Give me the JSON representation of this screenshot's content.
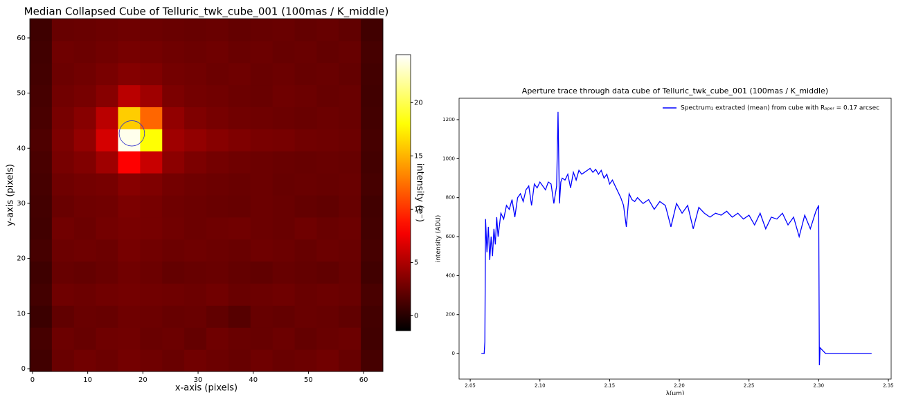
{
  "chart_data": [
    {
      "type": "heatmap",
      "title": "Median Collapsed Cube of Telluric_twk_cube_001 (100mas / K_middle)",
      "xlabel": "x-axis (pixels)",
      "ylabel": "y-axis (pixels)",
      "colorbar_label": "intensity (e⁻)",
      "colormap": "hot",
      "xbins": [
        -0.5,
        3.5,
        7.5,
        11.5,
        15.5,
        19.5,
        23.5,
        27.5,
        31.5,
        35.5,
        39.5,
        43.5,
        47.5,
        51.5,
        55.5,
        59.5,
        63.5
      ],
      "ybins": [
        -0.5,
        3.5,
        7.5,
        11.5,
        15.5,
        19.5,
        23.5,
        27.5,
        31.5,
        35.5,
        39.5,
        43.5,
        47.5,
        51.5,
        55.5,
        59.5,
        63.5
      ],
      "z": [
        [
          1.0,
          2.5,
          2.8,
          2.6,
          2.9,
          2.7,
          2.5,
          2.8,
          2.6,
          2.4,
          2.7,
          2.5,
          2.6,
          2.8,
          2.4,
          1.2
        ],
        [
          1.2,
          2.6,
          2.4,
          2.7,
          2.8,
          2.5,
          2.6,
          2.3,
          2.7,
          2.5,
          2.4,
          2.6,
          2.3,
          2.5,
          2.6,
          1.0
        ],
        [
          0.8,
          2.2,
          2.5,
          2.4,
          2.7,
          2.6,
          2.4,
          2.5,
          2.2,
          1.8,
          2.4,
          2.3,
          2.5,
          2.4,
          2.2,
          1.1
        ],
        [
          1.1,
          2.7,
          2.6,
          2.8,
          2.9,
          2.8,
          2.7,
          2.6,
          2.8,
          2.5,
          2.6,
          2.7,
          2.5,
          2.6,
          2.5,
          1.3
        ],
        [
          0.9,
          2.4,
          2.3,
          2.5,
          2.8,
          2.6,
          2.3,
          2.4,
          2.5,
          2.3,
          2.2,
          2.4,
          2.3,
          2.2,
          2.4,
          1.0
        ],
        [
          1.2,
          2.6,
          2.7,
          2.6,
          3.0,
          2.8,
          2.6,
          2.7,
          2.6,
          2.5,
          2.7,
          2.6,
          2.4,
          2.6,
          2.5,
          1.2
        ],
        [
          1.0,
          2.8,
          2.6,
          2.9,
          3.1,
          3.0,
          2.8,
          2.6,
          2.7,
          2.8,
          2.6,
          2.5,
          2.7,
          2.5,
          2.6,
          1.1
        ],
        [
          1.1,
          2.5,
          2.7,
          2.8,
          3.2,
          3.0,
          2.7,
          2.6,
          2.5,
          2.4,
          2.6,
          2.5,
          2.3,
          2.2,
          2.4,
          1.0
        ],
        [
          1.2,
          2.7,
          2.9,
          3.0,
          3.6,
          3.3,
          2.9,
          2.7,
          2.6,
          2.5,
          2.6,
          2.4,
          2.5,
          2.4,
          2.5,
          1.2
        ],
        [
          1.3,
          3.0,
          3.4,
          4.5,
          8.0,
          6.0,
          3.8,
          3.2,
          2.9,
          2.7,
          2.6,
          2.5,
          2.4,
          2.5,
          2.4,
          1.1
        ],
        [
          1.5,
          3.2,
          4.0,
          6.5,
          24.0,
          18.0,
          4.5,
          4.0,
          3.6,
          3.3,
          3.1,
          3.0,
          2.8,
          2.7,
          2.6,
          1.2
        ],
        [
          1.3,
          3.0,
          3.6,
          5.5,
          16.0,
          12.0,
          4.0,
          3.3,
          3.0,
          2.8,
          2.7,
          2.6,
          2.5,
          2.6,
          2.5,
          1.1
        ],
        [
          1.2,
          2.8,
          3.0,
          3.6,
          5.5,
          4.5,
          3.2,
          2.9,
          2.8,
          2.6,
          2.5,
          2.7,
          2.6,
          2.4,
          2.5,
          1.0
        ],
        [
          1.1,
          2.6,
          2.8,
          3.1,
          3.5,
          3.3,
          2.9,
          2.8,
          2.6,
          2.7,
          2.5,
          2.6,
          2.4,
          2.5,
          2.3,
          1.1
        ],
        [
          1.0,
          2.7,
          2.6,
          2.8,
          3.0,
          2.9,
          2.7,
          2.6,
          2.7,
          2.5,
          2.6,
          2.4,
          2.5,
          2.3,
          2.4,
          1.2
        ],
        [
          0.9,
          2.4,
          2.5,
          2.6,
          2.7,
          2.6,
          2.5,
          2.4,
          2.5,
          2.3,
          2.4,
          2.5,
          2.3,
          2.4,
          2.2,
          1.0
        ]
      ],
      "clim": [
        -1.4,
        24.5
      ],
      "cticks": [
        0,
        5,
        10,
        15,
        20
      ],
      "aperture": {
        "x": 18,
        "y": 42.7,
        "r": 2.3,
        "color": "#3333cc"
      },
      "xlim": [
        -0.5,
        63.5
      ],
      "ylim": [
        -0.5,
        63.5
      ],
      "xticks": [
        0,
        10,
        20,
        30,
        40,
        50,
        60
      ],
      "yticks": [
        0,
        10,
        20,
        30,
        40,
        50,
        60
      ]
    },
    {
      "type": "line",
      "title": "Aperture trace through data cube of Telluric_twk_cube_001 (100mas / K_middle)",
      "xlabel": "λ(μm)",
      "ylabel": "intensity (ADU)",
      "legend": "upper right",
      "x": [
        2.058,
        2.06,
        2.0605,
        2.061,
        2.062,
        2.063,
        2.064,
        2.065,
        2.066,
        2.067,
        2.068,
        2.069,
        2.07,
        2.072,
        2.074,
        2.076,
        2.078,
        2.08,
        2.082,
        2.084,
        2.086,
        2.088,
        2.09,
        2.092,
        2.094,
        2.096,
        2.098,
        2.1,
        2.102,
        2.104,
        2.106,
        2.108,
        2.11,
        2.112,
        2.113,
        2.114,
        2.115,
        2.116,
        2.118,
        2.12,
        2.122,
        2.124,
        2.126,
        2.128,
        2.13,
        2.132,
        2.134,
        2.136,
        2.138,
        2.14,
        2.142,
        2.144,
        2.146,
        2.148,
        2.15,
        2.152,
        2.154,
        2.156,
        2.158,
        2.16,
        2.162,
        2.164,
        2.166,
        2.168,
        2.17,
        2.174,
        2.178,
        2.182,
        2.186,
        2.19,
        2.194,
        2.198,
        2.202,
        2.206,
        2.21,
        2.214,
        2.218,
        2.222,
        2.226,
        2.23,
        2.234,
        2.238,
        2.242,
        2.246,
        2.25,
        2.254,
        2.258,
        2.262,
        2.266,
        2.27,
        2.274,
        2.278,
        2.282,
        2.286,
        2.29,
        2.294,
        2.298,
        2.3,
        2.3005,
        2.301,
        2.305,
        2.338
      ],
      "series": [
        {
          "name": "Spectrum₁ extracted (mean) from cube with Rₐₚₑᵣ = 0.17 arcsec",
          "color": "#0000ff",
          "values": [
            0,
            0,
            60,
            690,
            520,
            650,
            480,
            600,
            500,
            640,
            560,
            700,
            600,
            720,
            690,
            760,
            740,
            790,
            700,
            800,
            820,
            780,
            840,
            860,
            760,
            870,
            850,
            880,
            860,
            840,
            880,
            870,
            770,
            860,
            1240,
            770,
            880,
            900,
            890,
            920,
            850,
            930,
            890,
            940,
            920,
            930,
            940,
            950,
            930,
            945,
            920,
            940,
            900,
            920,
            870,
            890,
            860,
            830,
            800,
            760,
            650,
            820,
            790,
            780,
            800,
            770,
            790,
            740,
            780,
            760,
            650,
            770,
            720,
            760,
            640,
            750,
            720,
            700,
            720,
            710,
            730,
            700,
            720,
            690,
            710,
            660,
            720,
            640,
            700,
            690,
            720,
            660,
            700,
            600,
            710,
            640,
            730,
            760,
            -60,
            30,
            0,
            0
          ]
        }
      ],
      "xlim": [
        2.042,
        2.352
      ],
      "ylim": [
        -131,
        1310
      ],
      "xticks": [
        2.05,
        {
          "value": 2.1,
          "label": "2.10"
        },
        2.15,
        {
          "value": 2.2,
          "label": "2.20"
        },
        2.25,
        {
          "value": 2.3,
          "label": "2.30"
        },
        2.35
      ],
      "yticks": [
        0,
        200,
        400,
        600,
        800,
        1000,
        1200
      ]
    }
  ]
}
